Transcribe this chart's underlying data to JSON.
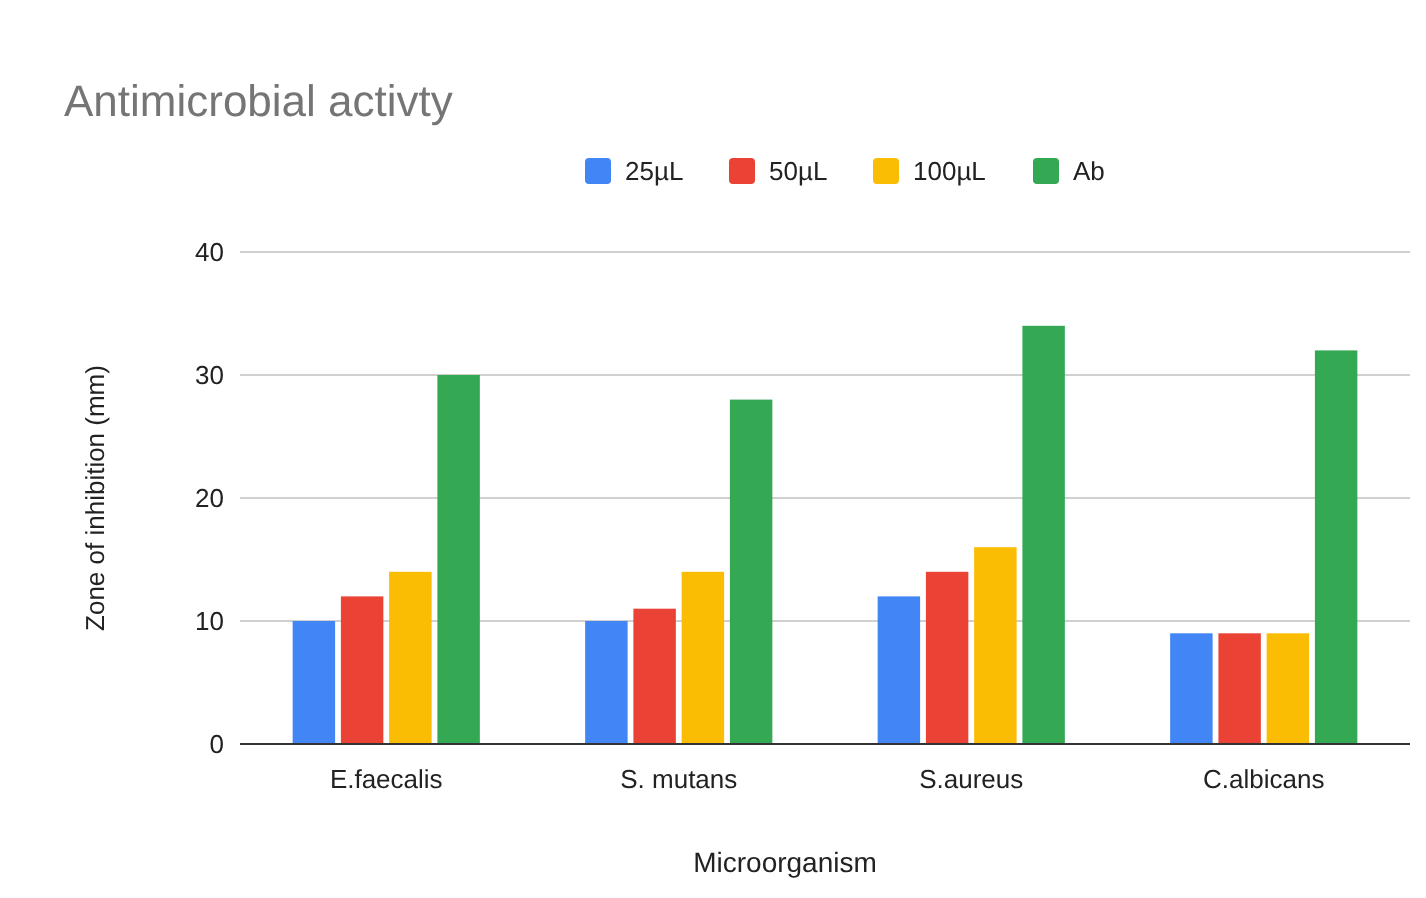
{
  "chart_data": {
    "type": "bar",
    "title": "Antimicrobial activty",
    "xlabel": "Microorganism",
    "ylabel": "Zone of inhibition (mm)",
    "categories": [
      "E.faecalis",
      "S. mutans",
      "S.aureus",
      "C.albicans"
    ],
    "series": [
      {
        "name": "25µL",
        "color": "#4285f4",
        "values": [
          10,
          10,
          12,
          9
        ]
      },
      {
        "name": "50µL",
        "color": "#ea4335",
        "values": [
          12,
          11,
          14,
          9
        ]
      },
      {
        "name": "100µL",
        "color": "#fbbc04",
        "values": [
          14,
          14,
          16,
          9
        ]
      },
      {
        "name": "Ab",
        "color": "#34a853",
        "values": [
          30,
          28,
          34,
          32
        ]
      }
    ],
    "ylim": [
      0,
      40
    ],
    "yticks": [
      0,
      10,
      20,
      30,
      40
    ],
    "grid": "y",
    "legend": "top"
  }
}
